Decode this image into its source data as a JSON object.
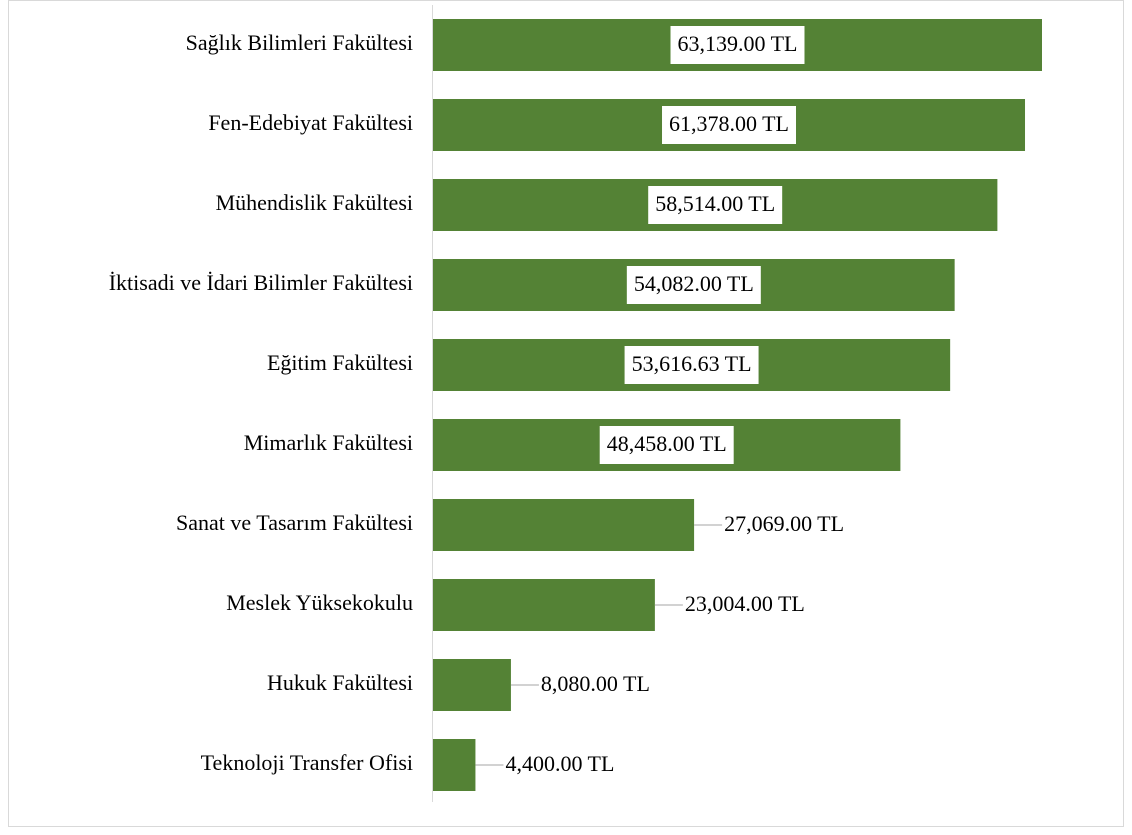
{
  "chart_data": {
    "type": "bar",
    "orientation": "horizontal",
    "color": "#548235",
    "categories": [
      "Sağlık Bilimleri Fakültesi",
      "Fen-Edebiyat Fakültesi",
      "Mühendislik Fakültesi",
      "İktisadi ve İdari Bilimler Fakültesi",
      "Eğitim Fakültesi",
      "Mimarlık Fakültesi",
      "Sanat ve Tasarım Fakültesi",
      "Meslek Yüksekokulu",
      "Hukuk Fakültesi",
      "Teknoloji Transfer Ofisi"
    ],
    "values": [
      63139,
      61378,
      58514,
      54082,
      53616.63,
      48458,
      27069,
      23004,
      8080,
      4400
    ],
    "value_labels": [
      "63,139.00 TL",
      "61,378.00 TL",
      "58,514.00 TL",
      "54,082.00 TL",
      "53,616.63 TL",
      "48,458.00 TL",
      "27,069.00 TL",
      "23,004.00 TL",
      "8,080.00 TL",
      "4,400.00 TL"
    ]
  }
}
